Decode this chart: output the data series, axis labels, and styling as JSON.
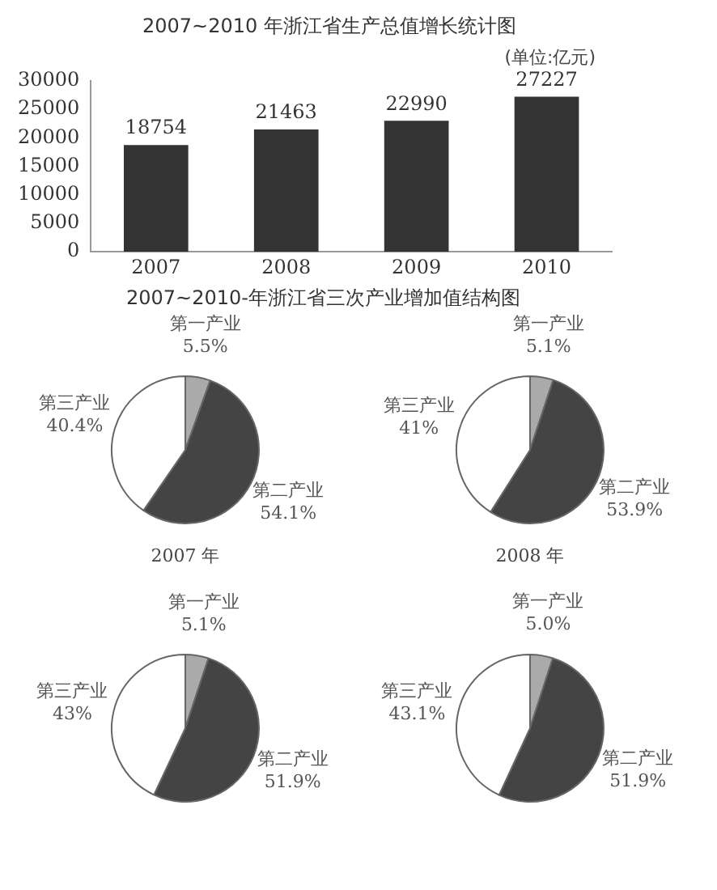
{
  "chart_data": [
    {
      "type": "bar",
      "title": "2007~2010 年浙江省生产总值增长统计图",
      "annotations": [
        "(单位:亿元)"
      ],
      "categories": [
        "2007",
        "2008",
        "2009",
        "2010"
      ],
      "values": [
        18754,
        21463,
        22990,
        27227
      ],
      "color": "#333333",
      "ylim": [
        0,
        30000
      ],
      "yticks": [
        0,
        5000,
        10000,
        15000,
        20000,
        25000,
        30000
      ],
      "grid": false,
      "data_labels": true,
      "legend": false
    },
    {
      "type": "pie",
      "title": "2007~2010-年浙江省三次产业增加值结构图",
      "annotations": [
        "2007 年"
      ],
      "categories": [
        "第一产业",
        "第二产业",
        "第三产业"
      ],
      "values": [
        5.5,
        54.1,
        40.4
      ],
      "value_labels": [
        "5.5%",
        "54.1%",
        "40.4%"
      ],
      "colors": [
        "#aaaaaa",
        "#444444",
        "#ffffff"
      ],
      "legend": false
    },
    {
      "type": "pie",
      "annotations": [
        "2008 年"
      ],
      "categories": [
        "第一产业",
        "第二产业",
        "第三产业"
      ],
      "values": [
        5.1,
        53.9,
        41
      ],
      "value_labels": [
        "5.1%",
        "53.9%",
        "41%"
      ],
      "colors": [
        "#aaaaaa",
        "#444444",
        "#ffffff"
      ],
      "legend": false
    },
    {
      "type": "pie",
      "categories": [
        "第一产业",
        "第二产业",
        "第三产业"
      ],
      "values": [
        5.1,
        51.9,
        43
      ],
      "value_labels": [
        "5.1%",
        "51.9%",
        "43%"
      ],
      "colors": [
        "#aaaaaa",
        "#444444",
        "#ffffff"
      ],
      "legend": false
    },
    {
      "type": "pie",
      "categories": [
        "第一产业",
        "第二产业",
        "第三产业"
      ],
      "values": [
        5.0,
        51.9,
        43.1
      ],
      "value_labels": [
        "5.0%",
        "51.9%",
        "43.1%"
      ],
      "colors": [
        "#aaaaaa",
        "#444444",
        "#ffffff"
      ],
      "legend": false
    }
  ]
}
